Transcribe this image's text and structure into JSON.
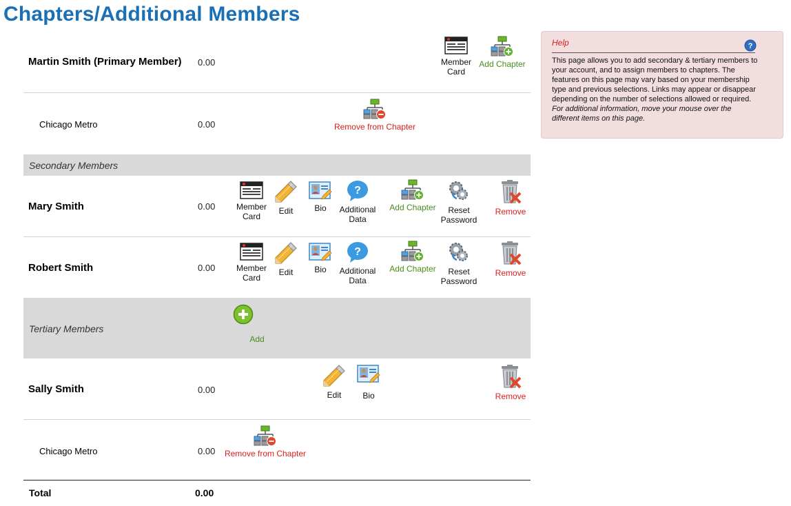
{
  "page": {
    "title": "Chapters/Additional Members"
  },
  "primary": {
    "name": "Martin Smith (Primary Member)",
    "amount": "0.00",
    "actions": {
      "member_card": "Member Card",
      "add_chapter": "Add Chapter"
    },
    "chapter": {
      "name": "Chicago Metro",
      "amount": "0.00",
      "remove": "Remove from Chapter"
    }
  },
  "secondary": {
    "heading": "Secondary Members",
    "members": [
      {
        "name": "Mary Smith",
        "amount": "0.00"
      },
      {
        "name": "Robert Smith",
        "amount": "0.00"
      }
    ],
    "actions": {
      "member_card": "Member Card",
      "edit": "Edit",
      "bio": "Bio",
      "additional_data": "Additional Data",
      "add_chapter": "Add Chapter",
      "reset_password": "Reset Password",
      "remove": "Remove"
    }
  },
  "tertiary": {
    "heading": "Tertiary Members",
    "add_label": "Add",
    "members": [
      {
        "name": "Sally Smith",
        "amount": "0.00",
        "actions": {
          "edit": "Edit",
          "bio": "Bio",
          "remove": "Remove"
        },
        "chapter": {
          "name": "Chicago Metro",
          "amount": "0.00",
          "remove": "Remove from Chapter"
        }
      }
    ]
  },
  "total": {
    "label": "Total",
    "value": "0.00"
  },
  "help": {
    "title": "Help",
    "text": "This page allows you to add secondary & tertiary members to your account, and to assign members to chapters. The features on this page may vary based on your membership type and previous selections. Links may appear or disappear depending on the number of selections allowed or required.",
    "italic_text": "For additional information, move your mouse over the different items on this page."
  },
  "colors": {
    "title": "#1a6fb5",
    "action_green": "#4a8c1c",
    "action_red": "#d9201e",
    "section_bg": "#d9d9d9",
    "help_bg": "#f2dede"
  },
  "icons": [
    "member-card-icon",
    "add-chapter-icon",
    "remove-chapter-icon",
    "edit-pencil-icon",
    "bio-icon",
    "additional-data-icon",
    "reset-password-icon",
    "remove-trash-icon",
    "add-plus-icon",
    "help-question-icon"
  ]
}
